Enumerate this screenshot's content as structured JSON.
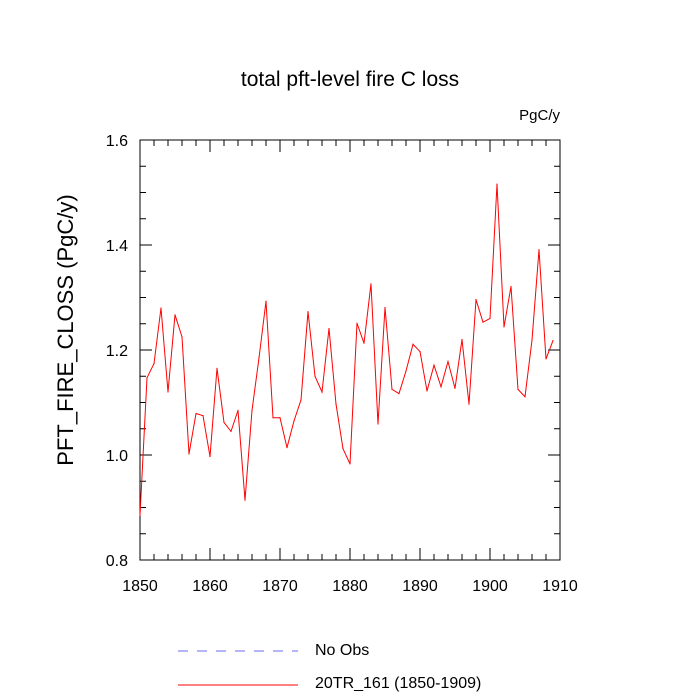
{
  "chart_data": {
    "type": "line",
    "title": "total pft-level fire C loss",
    "units_label": "PgC/y",
    "ylabel": "PFT_FIRE_CLOSS  (PgC/y)",
    "xlabel": "",
    "xlim": [
      1850,
      1910
    ],
    "ylim": [
      0.8,
      1.6
    ],
    "x_ticks": [
      1850,
      1860,
      1870,
      1880,
      1890,
      1900,
      1910
    ],
    "y_ticks": [
      0.8,
      1.0,
      1.2,
      1.4,
      1.6
    ],
    "y_tick_labels": [
      "0.8",
      "1.0",
      "1.2",
      "1.4",
      "1.6"
    ],
    "series": [
      {
        "name": "20TR_161 (1850-1909)",
        "color": "#ff0000",
        "style": "solid",
        "x": [
          1850,
          1851,
          1852,
          1853,
          1854,
          1855,
          1856,
          1857,
          1858,
          1859,
          1860,
          1861,
          1862,
          1863,
          1864,
          1865,
          1866,
          1867,
          1868,
          1869,
          1870,
          1871,
          1872,
          1873,
          1874,
          1875,
          1876,
          1877,
          1878,
          1879,
          1880,
          1881,
          1882,
          1883,
          1884,
          1885,
          1886,
          1887,
          1888,
          1889,
          1890,
          1891,
          1892,
          1893,
          1894,
          1895,
          1896,
          1897,
          1898,
          1899,
          1900,
          1901,
          1902,
          1903,
          1904,
          1905,
          1906,
          1907,
          1908,
          1909
        ],
        "values": [
          0.885,
          1.147,
          1.174,
          1.28,
          1.12,
          1.267,
          1.225,
          1.002,
          1.079,
          1.075,
          0.997,
          1.165,
          1.062,
          1.045,
          1.085,
          0.914,
          1.085,
          1.185,
          1.293,
          1.071,
          1.071,
          1.014,
          1.065,
          1.105,
          1.273,
          1.15,
          1.12,
          1.241,
          1.097,
          1.012,
          0.983,
          1.251,
          1.213,
          1.326,
          1.059,
          1.281,
          1.125,
          1.117,
          1.16,
          1.211,
          1.197,
          1.122,
          1.171,
          1.13,
          1.178,
          1.127,
          1.22,
          1.097,
          1.296,
          1.253,
          1.26,
          1.516,
          1.244,
          1.321,
          1.125,
          1.111,
          1.219,
          1.391,
          1.183,
          1.218
        ]
      },
      {
        "name": "No Obs",
        "color": "#6a6af0",
        "style": "dashed",
        "x": [],
        "values": []
      }
    ],
    "legend_position": "bottom-center"
  }
}
